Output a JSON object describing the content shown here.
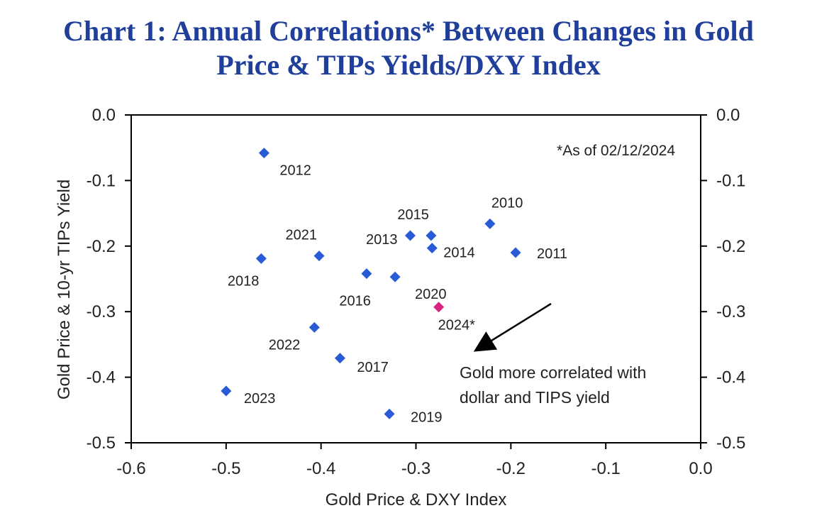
{
  "title_line1": "Chart 1: Annual Correlations* Between Changes in Gold",
  "title_line2": "Price & TIPs Yields/DXY Index",
  "chart_data": {
    "type": "scatter",
    "title": "Chart 1: Annual Correlations* Between Changes in Gold Price & TIPs Yields/DXY Index",
    "xlabel": "Gold Price & DXY Index",
    "ylabel": "Gold Price & 10-yr TIPs Yield",
    "xlim": [
      -0.6,
      0.0
    ],
    "ylim": [
      -0.5,
      0.0
    ],
    "x_ticks": [
      "-0.6",
      "-0.5",
      "-0.4",
      "-0.3",
      "-0.2",
      "-0.1",
      "0.0"
    ],
    "y_ticks": [
      "0.0",
      "-0.1",
      "-0.2",
      "-0.3",
      "-0.4",
      "-0.5"
    ],
    "grid": false,
    "points": [
      {
        "label": "2012",
        "x": -0.46,
        "y": -0.058,
        "color": "#2a5bd7"
      },
      {
        "label": "2010",
        "x": -0.222,
        "y": -0.166,
        "color": "#2a5bd7"
      },
      {
        "label": "2015",
        "x": -0.284,
        "y": -0.184,
        "color": "#2a5bd7"
      },
      {
        "label": "2013",
        "x": -0.306,
        "y": -0.184,
        "color": "#2a5bd7"
      },
      {
        "label": "2014",
        "x": -0.283,
        "y": -0.203,
        "color": "#2a5bd7"
      },
      {
        "label": "2011",
        "x": -0.195,
        "y": -0.21,
        "color": "#2a5bd7"
      },
      {
        "label": "2021",
        "x": -0.402,
        "y": -0.215,
        "color": "#2a5bd7"
      },
      {
        "label": "2018",
        "x": -0.463,
        "y": -0.219,
        "color": "#2a5bd7"
      },
      {
        "label": "2016",
        "x": -0.352,
        "y": -0.242,
        "color": "#2a5bd7"
      },
      {
        "label": "2020",
        "x": -0.322,
        "y": -0.247,
        "color": "#2a5bd7"
      },
      {
        "label": "2024*",
        "x": -0.276,
        "y": -0.293,
        "color": "#d6247f"
      },
      {
        "label": "2022",
        "x": -0.407,
        "y": -0.324,
        "color": "#2a5bd7"
      },
      {
        "label": "2017",
        "x": -0.38,
        "y": -0.371,
        "color": "#2a5bd7"
      },
      {
        "label": "2023",
        "x": -0.5,
        "y": -0.421,
        "color": "#2a5bd7"
      },
      {
        "label": "2019",
        "x": -0.328,
        "y": -0.456,
        "color": "#2a5bd7"
      }
    ],
    "annotations": [
      {
        "text": "*As of 02/12/2024"
      },
      {
        "text": "Gold more correlated with"
      },
      {
        "text": "dollar and TIPS yield"
      }
    ]
  }
}
